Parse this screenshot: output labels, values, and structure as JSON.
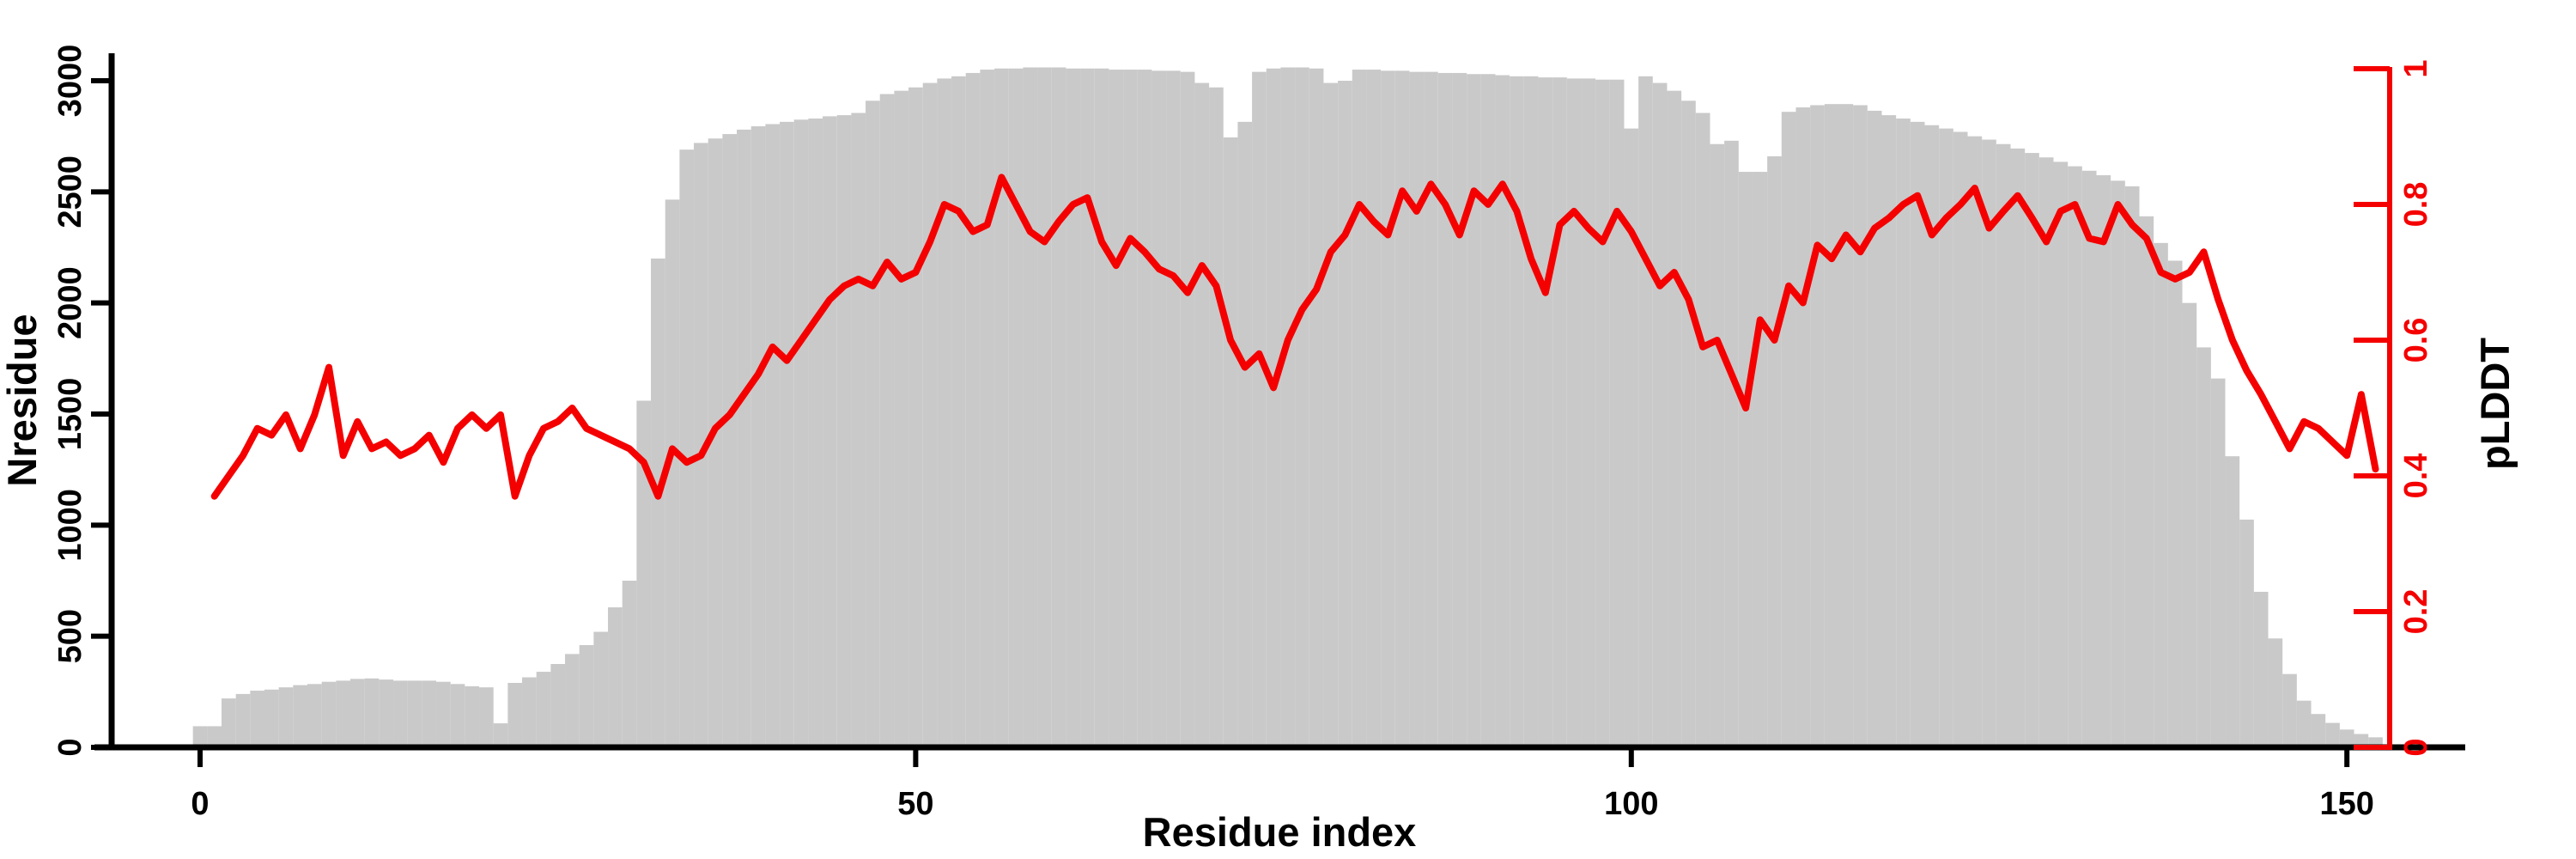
{
  "figure": {
    "x_label": "Residue index",
    "y_label_left": "Nresidue",
    "y_label_right": "pLDDT",
    "colors": {
      "bar": "#C9C9C9",
      "line": "#F40000",
      "right_axis": "#F40000",
      "axis": "#000000",
      "background": "#FFFFFF"
    }
  },
  "chart_data": {
    "type": "combo-bar-line",
    "title": "",
    "xlabel": "Residue index",
    "x_ticks": [
      0,
      50,
      100,
      150
    ],
    "x_range": [
      -7,
      157
    ],
    "left_axis": {
      "label": "Nresidue",
      "ticks": [
        0,
        500,
        1000,
        1500,
        2000,
        2500,
        3000
      ],
      "range": [
        0,
        3100
      ],
      "grid": false
    },
    "right_axis": {
      "label": "pLDDT",
      "ticks": [
        0,
        0.2,
        0.4,
        0.6,
        0.8,
        1
      ],
      "range": [
        0,
        1
      ],
      "grid": false
    },
    "legend": "none",
    "series": [
      {
        "name": "Nresidue",
        "type": "bar",
        "axis": "left",
        "x_start": 0,
        "values": [
          95,
          95,
          220,
          240,
          255,
          260,
          270,
          280,
          285,
          295,
          300,
          308,
          310,
          305,
          300,
          300,
          300,
          295,
          285,
          275,
          270,
          108,
          290,
          315,
          340,
          375,
          420,
          460,
          520,
          630,
          750,
          1560,
          2200,
          2465,
          2690,
          2720,
          2740,
          2760,
          2780,
          2795,
          2805,
          2815,
          2825,
          2830,
          2840,
          2845,
          2855,
          2910,
          2940,
          2955,
          2970,
          2990,
          3010,
          3020,
          3035,
          3050,
          3055,
          3055,
          3060,
          3060,
          3060,
          3055,
          3055,
          3055,
          3050,
          3050,
          3050,
          3045,
          3045,
          3040,
          2990,
          2970,
          2745,
          2815,
          3040,
          3055,
          3060,
          3060,
          3055,
          2990,
          3000,
          3050,
          3050,
          3045,
          3045,
          3040,
          3040,
          3035,
          3035,
          3030,
          3030,
          3025,
          3020,
          3020,
          3015,
          3015,
          3010,
          3010,
          3005,
          3005,
          2785,
          3020,
          2990,
          2955,
          2910,
          2855,
          2715,
          2730,
          2590,
          2590,
          2660,
          2860,
          2880,
          2890,
          2895,
          2895,
          2890,
          2865,
          2845,
          2830,
          2815,
          2800,
          2785,
          2770,
          2750,
          2735,
          2715,
          2695,
          2675,
          2655,
          2635,
          2615,
          2595,
          2575,
          2550,
          2525,
          2390,
          2270,
          2190,
          2000,
          1800,
          1660,
          1310,
          1025,
          700,
          490,
          330,
          210,
          150,
          110,
          80,
          60,
          45
        ]
      },
      {
        "name": "pLDDT",
        "type": "line",
        "axis": "right",
        "x_start": 1,
        "values": [
          0.37,
          0.4,
          0.43,
          0.47,
          0.46,
          0.49,
          0.44,
          0.49,
          0.56,
          0.43,
          0.48,
          0.44,
          0.45,
          0.43,
          0.44,
          0.46,
          0.42,
          0.47,
          0.49,
          0.47,
          0.49,
          0.37,
          0.43,
          0.47,
          0.48,
          0.5,
          0.47,
          0.46,
          0.45,
          0.44,
          0.42,
          0.37,
          0.44,
          0.42,
          0.43,
          0.47,
          0.49,
          0.52,
          0.55,
          0.59,
          0.57,
          0.6,
          0.63,
          0.66,
          0.68,
          0.69,
          0.68,
          0.715,
          0.69,
          0.7,
          0.745,
          0.8,
          0.79,
          0.76,
          0.77,
          0.84,
          0.8,
          0.76,
          0.745,
          0.775,
          0.8,
          0.81,
          0.745,
          0.71,
          0.75,
          0.73,
          0.705,
          0.695,
          0.67,
          0.71,
          0.68,
          0.6,
          0.56,
          0.58,
          0.53,
          0.6,
          0.645,
          0.675,
          0.73,
          0.755,
          0.8,
          0.775,
          0.755,
          0.82,
          0.79,
          0.83,
          0.8,
          0.755,
          0.82,
          0.8,
          0.83,
          0.79,
          0.72,
          0.67,
          0.77,
          0.79,
          0.765,
          0.745,
          0.79,
          0.76,
          0.72,
          0.68,
          0.7,
          0.66,
          0.59,
          0.6,
          0.55,
          0.5,
          0.63,
          0.6,
          0.68,
          0.655,
          0.74,
          0.72,
          0.755,
          0.73,
          0.765,
          0.78,
          0.8,
          0.813,
          0.755,
          0.78,
          0.8,
          0.824,
          0.765,
          0.79,
          0.813,
          0.78,
          0.745,
          0.79,
          0.8,
          0.75,
          0.745,
          0.8,
          0.77,
          0.75,
          0.7,
          0.69,
          0.7,
          0.73,
          0.66,
          0.6,
          0.555,
          0.52,
          0.48,
          0.44,
          0.48,
          0.47,
          0.45,
          0.43,
          0.52,
          0.41
        ]
      }
    ]
  }
}
